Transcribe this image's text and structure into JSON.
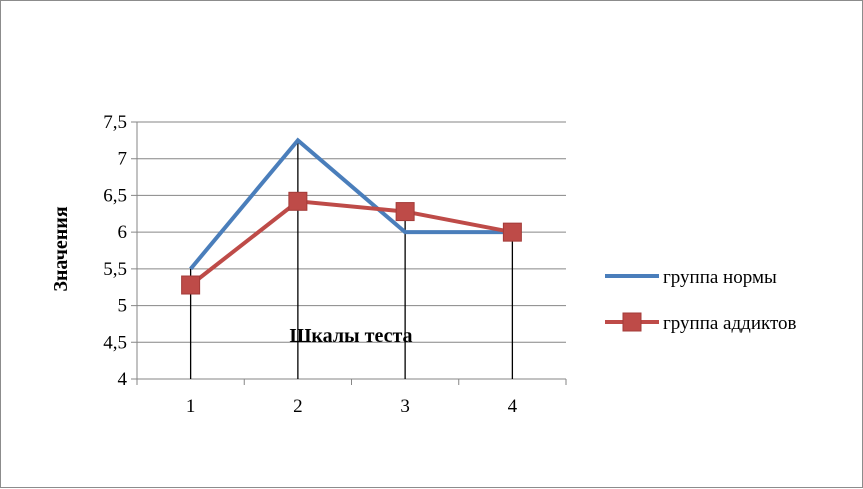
{
  "chart_data": {
    "type": "line",
    "categories": [
      "1",
      "2",
      "3",
      "4"
    ],
    "series": [
      {
        "name": "группа нормы",
        "values": [
          5.5,
          7.25,
          6.0,
          6.0
        ],
        "color": "#4a7ebb",
        "marker": "none"
      },
      {
        "name": "группа аддиктов",
        "values": [
          5.28,
          6.42,
          6.28,
          6.0
        ],
        "color": "#be4b48",
        "marker": "square"
      }
    ],
    "xlabel": "Шкалы теста",
    "ylabel": "Значения",
    "ylim": [
      4,
      7.5
    ],
    "yticks": [
      "4",
      "4,5",
      "5",
      "5,5",
      "6",
      "6,5",
      "7",
      "7,5"
    ],
    "ytick_values": [
      4,
      4.5,
      5,
      5.5,
      6,
      6.5,
      7,
      7.5
    ],
    "grid": "horizontal",
    "high_low_lines": true,
    "legend": "right"
  }
}
